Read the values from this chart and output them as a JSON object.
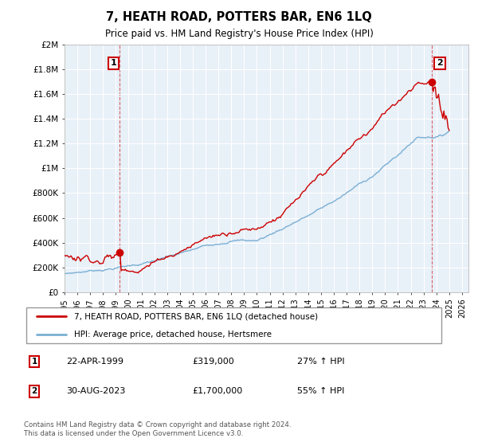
{
  "title": "7, HEATH ROAD, POTTERS BAR, EN6 1LQ",
  "subtitle": "Price paid vs. HM Land Registry's House Price Index (HPI)",
  "legend_label_red": "7, HEATH ROAD, POTTERS BAR, EN6 1LQ (detached house)",
  "legend_label_blue": "HPI: Average price, detached house, Hertsmere",
  "annotation1_label": "1",
  "annotation1_date": "22-APR-1999",
  "annotation1_price": "£319,000",
  "annotation1_hpi": "27% ↑ HPI",
  "annotation1_year": 1999.3,
  "annotation1_value": 319000,
  "annotation2_label": "2",
  "annotation2_date": "30-AUG-2023",
  "annotation2_price": "£1,700,000",
  "annotation2_hpi": "55% ↑ HPI",
  "annotation2_year": 2023.67,
  "annotation2_value": 1700000,
  "footer": "Contains HM Land Registry data © Crown copyright and database right 2024.\nThis data is licensed under the Open Government Licence v3.0.",
  "red_color": "#cc0000",
  "blue_color": "#7aafd4",
  "background_color": "#ffffff",
  "plot_bg_color": "#e8f0f8",
  "grid_color": "#ffffff",
  "ylim": [
    0,
    2000000
  ],
  "xlim_start": 1995.0,
  "xlim_end": 2026.5
}
